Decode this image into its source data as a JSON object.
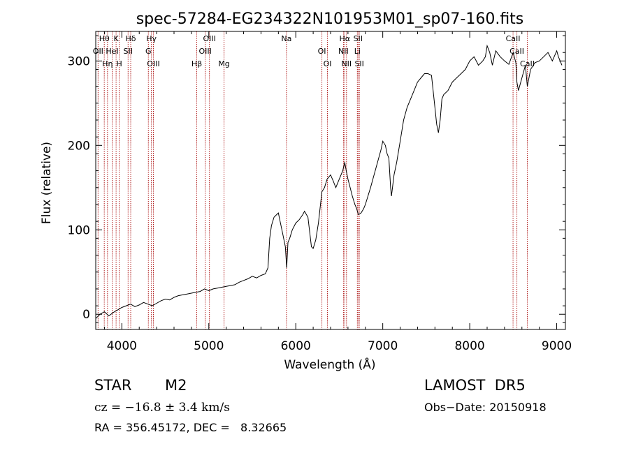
{
  "chart_data": {
    "type": "line",
    "title": "spec-57284-EG234322N101953M01_sp07-160.fits",
    "xlabel": "Wavelength (Å)",
    "ylabel": "Flux (relative)",
    "xlim": [
      3700,
      9100
    ],
    "ylim": [
      -18,
      335
    ],
    "xticks": [
      4000,
      5000,
      6000,
      7000,
      8000,
      9000
    ],
    "yticks": [
      0,
      100,
      200,
      300
    ],
    "series": [
      {
        "color": "#000000",
        "x": [
          3700,
          3750,
          3800,
          3850,
          3900,
          3950,
          4000,
          4050,
          4100,
          4150,
          4200,
          4250,
          4300,
          4350,
          4400,
          4450,
          4500,
          4550,
          4600,
          4650,
          4700,
          4750,
          4800,
          4850,
          4900,
          4950,
          5000,
          5050,
          5100,
          5150,
          5200,
          5250,
          5300,
          5350,
          5400,
          5450,
          5500,
          5550,
          5600,
          5650,
          5680,
          5700,
          5720,
          5750,
          5780,
          5800,
          5820,
          5850,
          5880,
          5895,
          5910,
          5930,
          5960,
          6000,
          6040,
          6080,
          6100,
          6140,
          6180,
          6200,
          6230,
          6260,
          6300,
          6330,
          6360,
          6400,
          6430,
          6460,
          6500,
          6540,
          6563,
          6580,
          6600,
          6620,
          6650,
          6680,
          6700,
          6720,
          6750,
          6780,
          6800,
          6830,
          6860,
          6900,
          6940,
          6980,
          7000,
          7030,
          7050,
          7070,
          7090,
          7100,
          7130,
          7160,
          7200,
          7240,
          7280,
          7320,
          7360,
          7400,
          7440,
          7480,
          7520,
          7560,
          7600,
          7620,
          7640,
          7660,
          7680,
          7700,
          7750,
          7800,
          7850,
          7900,
          7950,
          8000,
          8050,
          8100,
          8150,
          8180,
          8200,
          8230,
          8260,
          8300,
          8350,
          8400,
          8450,
          8500,
          8530,
          8542,
          8560,
          8600,
          8640,
          8662,
          8700,
          8750,
          8800,
          8850,
          8900,
          8950,
          9000,
          9020,
          9040,
          9060
        ],
        "values": [
          -5,
          0,
          3,
          -2,
          2,
          5,
          8,
          10,
          12,
          9,
          11,
          14,
          12,
          10,
          13,
          16,
          18,
          17,
          20,
          22,
          23,
          24,
          25,
          26,
          27,
          30,
          28,
          30,
          31,
          32,
          33,
          34,
          35,
          38,
          40,
          42,
          45,
          43,
          46,
          48,
          55,
          90,
          105,
          115,
          118,
          120,
          110,
          95,
          80,
          55,
          85,
          90,
          100,
          108,
          112,
          118,
          122,
          115,
          80,
          78,
          88,
          108,
          145,
          150,
          160,
          165,
          158,
          150,
          160,
          170,
          180,
          170,
          160,
          152,
          140,
          130,
          125,
          118,
          120,
          125,
          130,
          140,
          150,
          165,
          180,
          195,
          205,
          200,
          190,
          185,
          150,
          140,
          165,
          180,
          205,
          230,
          245,
          255,
          265,
          275,
          280,
          285,
          285,
          283,
          245,
          225,
          215,
          230,
          255,
          260,
          265,
          275,
          280,
          285,
          290,
          300,
          305,
          295,
          300,
          305,
          318,
          310,
          295,
          312,
          305,
          300,
          296,
          310,
          298,
          275,
          265,
          280,
          295,
          270,
          290,
          298,
          300,
          305,
          310,
          300,
          312,
          305,
          300,
          295
        ]
      }
    ],
    "line_markers": [
      {
        "label": "Hθ",
        "x": 3798
      },
      {
        "label": "OII",
        "x": 3727
      },
      {
        "label": "Hη",
        "x": 3835
      },
      {
        "label": "K",
        "x": 3934
      },
      {
        "label": "HeI",
        "x": 3889
      },
      {
        "label": "H",
        "x": 3970
      },
      {
        "label": "Hδ",
        "x": 4102
      },
      {
        "label": "SII",
        "x": 4072
      },
      {
        "label": "OIII",
        "x": 4363
      },
      {
        "label": "Hγ",
        "x": 4340
      },
      {
        "label": "G",
        "x": 4305
      },
      {
        "label": "Hβ",
        "x": 4861
      },
      {
        "label": "OIII",
        "x": 5007
      },
      {
        "label": "OIII",
        "x": 4959
      },
      {
        "label": "Mg",
        "x": 5175
      },
      {
        "label": "Na",
        "x": 5893
      },
      {
        "label": "OI",
        "x": 6300
      },
      {
        "label": "OI",
        "x": 6364
      },
      {
        "label": "Hα",
        "x": 6563
      },
      {
        "label": "NII",
        "x": 6548
      },
      {
        "label": "NII",
        "x": 6583
      },
      {
        "label": "SII",
        "x": 6716
      },
      {
        "label": "Li",
        "x": 6708
      },
      {
        "label": "SII",
        "x": 6731
      },
      {
        "label": "CaII",
        "x": 8498
      },
      {
        "label": "CaII",
        "x": 8542
      },
      {
        "label": "CaII",
        "x": 8662
      }
    ],
    "marker_color": "#b22222"
  },
  "info": {
    "object_class": "STAR",
    "subclass": "M2",
    "survey": "LAMOST  DR5",
    "cz": "cz = −16.8 ± 3.4 km/s",
    "obs_date": "Obs−Date: 20150918",
    "coords": "RA = 356.45172, DEC =   8.32665"
  }
}
